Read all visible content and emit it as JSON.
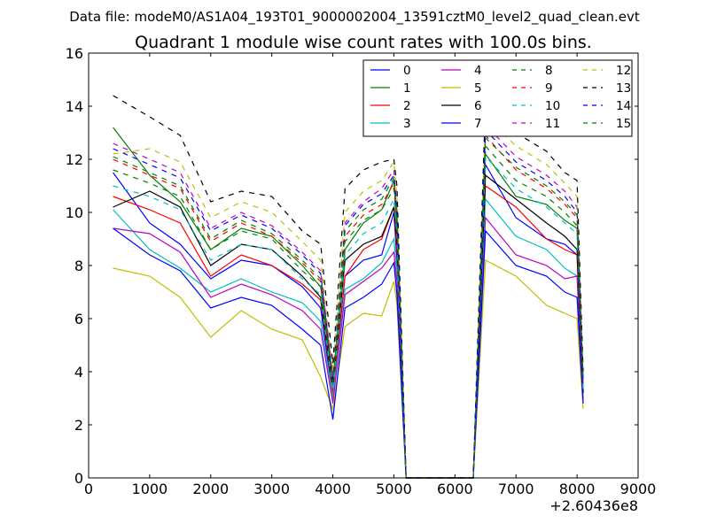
{
  "suptitle": "Data file: modeM0/AS1A04_193T01_9000002004_13591cztM0_level2_quad_clean.evt",
  "chart_data": {
    "type": "line",
    "title": "Quadrant 1 module wise count rates with 100.0s bins.",
    "xlabel": "",
    "ylabel": "",
    "xlim": [
      0,
      9000
    ],
    "ylim": [
      0,
      16
    ],
    "x_offset_label": "+2.60436e8",
    "xticks": [
      0,
      1000,
      2000,
      3000,
      4000,
      5000,
      6000,
      7000,
      8000,
      9000
    ],
    "yticks": [
      0,
      2,
      4,
      6,
      8,
      10,
      12,
      14,
      16
    ],
    "grid": false,
    "legend_position": "top-right",
    "x": [
      400,
      1000,
      1500,
      2000,
      2500,
      3000,
      3500,
      3800,
      4000,
      4200,
      4500,
      4800,
      5000,
      5050,
      5200,
      6300,
      6500,
      7000,
      7500,
      7800,
      8000,
      8100
    ],
    "series": [
      {
        "name": "0",
        "color": "#0000ff",
        "dash": "solid",
        "values": [
          11.5,
          9.6,
          8.8,
          7.5,
          8.2,
          8.0,
          7.2,
          6.4,
          3.0,
          7.6,
          8.2,
          8.4,
          10.0,
          8.2,
          0,
          0,
          11.8,
          9.8,
          9.0,
          8.8,
          8.4,
          3.2
        ]
      },
      {
        "name": "1",
        "color": "#008000",
        "dash": "solid",
        "values": [
          13.2,
          11.4,
          10.4,
          8.6,
          9.4,
          9.1,
          8.0,
          7.2,
          3.6,
          8.6,
          9.6,
          10.1,
          11.2,
          9.4,
          0,
          0,
          12.2,
          10.6,
          10.3,
          9.7,
          9.4,
          3.4
        ]
      },
      {
        "name": "2",
        "color": "#ff0000",
        "dash": "solid",
        "values": [
          10.6,
          10.1,
          9.6,
          7.6,
          8.4,
          8.0,
          7.3,
          6.7,
          3.2,
          7.6,
          8.6,
          9.0,
          10.2,
          8.5,
          0,
          0,
          11.0,
          10.2,
          9.0,
          8.6,
          8.4,
          3.0
        ]
      },
      {
        "name": "3",
        "color": "#00bfbf",
        "dash": "solid",
        "values": [
          10.1,
          8.6,
          7.9,
          7.0,
          7.5,
          7.0,
          6.6,
          5.9,
          3.0,
          7.1,
          7.5,
          8.1,
          9.0,
          7.8,
          0,
          0,
          10.5,
          9.1,
          8.6,
          7.9,
          7.6,
          3.0
        ]
      },
      {
        "name": "4",
        "color": "#bf00bf",
        "dash": "solid",
        "values": [
          9.4,
          9.2,
          8.5,
          6.8,
          7.3,
          6.9,
          6.3,
          5.6,
          2.8,
          6.9,
          7.4,
          7.9,
          8.5,
          7.4,
          0,
          0,
          9.8,
          8.4,
          8.0,
          7.5,
          7.6,
          2.8
        ]
      },
      {
        "name": "5",
        "color": "#bfbf00",
        "dash": "solid",
        "values": [
          7.9,
          7.6,
          6.8,
          5.3,
          6.3,
          5.6,
          5.2,
          3.8,
          2.6,
          5.7,
          6.2,
          6.1,
          7.4,
          6.5,
          0,
          0,
          8.2,
          7.6,
          6.5,
          6.2,
          6.0,
          2.6
        ]
      },
      {
        "name": "6",
        "color": "#000000",
        "dash": "solid",
        "values": [
          10.2,
          10.8,
          10.2,
          8.0,
          8.8,
          8.6,
          7.6,
          6.8,
          3.4,
          8.2,
          8.8,
          9.1,
          10.2,
          8.9,
          0,
          0,
          11.4,
          10.5,
          9.6,
          9.1,
          8.6,
          3.2
        ]
      },
      {
        "name": "7",
        "color": "#0000ff",
        "dash": "solid",
        "values": [
          9.4,
          8.4,
          7.8,
          6.4,
          6.8,
          6.5,
          5.6,
          5.0,
          2.2,
          6.4,
          6.8,
          7.3,
          8.1,
          6.9,
          0,
          0,
          9.3,
          8.0,
          7.6,
          7.0,
          6.8,
          2.8
        ]
      },
      {
        "name": "8",
        "color": "#008000",
        "dash": "dashed",
        "values": [
          11.6,
          11.1,
          10.6,
          8.6,
          9.3,
          9.0,
          7.8,
          7.2,
          3.5,
          8.9,
          9.7,
          10.1,
          10.9,
          9.5,
          0,
          0,
          12.5,
          11.2,
          10.6,
          10.0,
          9.5,
          3.5
        ]
      },
      {
        "name": "9",
        "color": "#ff0000",
        "dash": "dashed",
        "values": [
          12.0,
          11.4,
          10.9,
          8.9,
          9.6,
          9.1,
          8.1,
          7.4,
          3.6,
          9.1,
          9.9,
          10.3,
          11.1,
          9.7,
          0,
          0,
          12.9,
          11.6,
          10.9,
          10.3,
          9.8,
          3.5
        ]
      },
      {
        "name": "10",
        "color": "#00bfbf",
        "dash": "dashed",
        "values": [
          11.0,
          10.6,
          10.1,
          8.2,
          8.8,
          8.6,
          7.5,
          6.9,
          3.3,
          8.4,
          9.2,
          9.6,
          10.5,
          9.1,
          0,
          0,
          12.1,
          10.9,
          10.2,
          9.6,
          9.2,
          3.3
        ]
      },
      {
        "name": "11",
        "color": "#bf00bf",
        "dash": "dashed",
        "values": [
          12.6,
          12.0,
          11.5,
          9.4,
          10.0,
          9.5,
          8.5,
          7.8,
          3.8,
          9.6,
          10.4,
          10.9,
          11.6,
          10.2,
          0,
          0,
          13.3,
          12.1,
          11.4,
          10.8,
          10.2,
          3.7
        ]
      },
      {
        "name": "12",
        "color": "#bfbf00",
        "dash": "dashed",
        "values": [
          12.2,
          12.4,
          11.9,
          9.8,
          10.4,
          10.0,
          8.9,
          8.2,
          4.0,
          10.0,
          10.8,
          11.2,
          11.9,
          10.6,
          0,
          0,
          13.6,
          12.5,
          11.8,
          11.1,
          10.6,
          3.8
        ]
      },
      {
        "name": "13",
        "color": "#000000",
        "dash": "dashed",
        "values": [
          14.4,
          13.6,
          12.9,
          10.4,
          10.8,
          10.6,
          9.3,
          8.8,
          4.3,
          10.9,
          11.6,
          11.9,
          12.0,
          11.0,
          0,
          0,
          14.2,
          13.0,
          12.3,
          11.5,
          11.2,
          4.0
        ]
      },
      {
        "name": "14",
        "color": "#0000ff",
        "dash": "dashed",
        "values": [
          12.4,
          11.8,
          11.3,
          9.3,
          9.9,
          9.4,
          8.4,
          7.7,
          3.7,
          9.5,
          10.3,
          10.7,
          11.4,
          10.0,
          0,
          0,
          13.1,
          11.9,
          11.2,
          10.6,
          10.0,
          3.6
        ]
      },
      {
        "name": "15",
        "color": "#008000",
        "dash": "dashed",
        "values": [
          12.1,
          11.5,
          11.0,
          9.0,
          9.7,
          9.2,
          8.2,
          7.5,
          3.6,
          9.3,
          10.1,
          10.5,
          11.3,
          9.9,
          0,
          0,
          12.8,
          11.7,
          11.0,
          10.4,
          9.9,
          3.6
        ]
      }
    ]
  }
}
